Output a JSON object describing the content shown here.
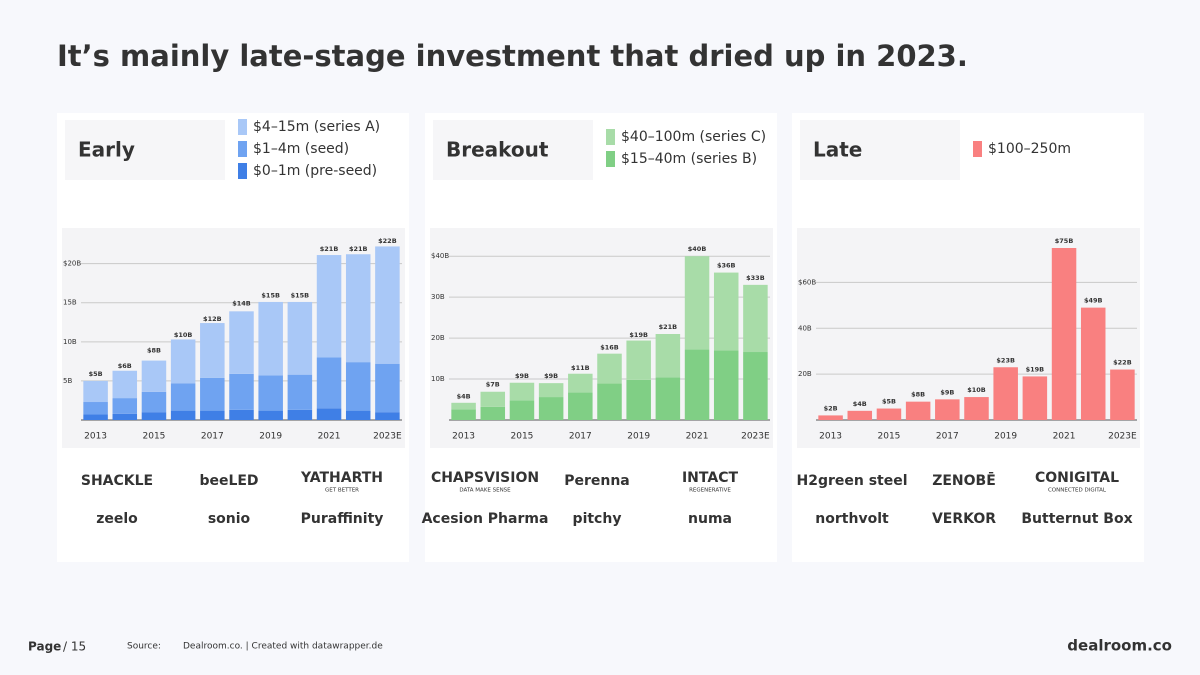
{
  "title": "It’s mainly late-stage investment that dried up in 2023.",
  "chart_data": [
    {
      "type": "bar",
      "stacked": true,
      "title": "Early",
      "categories": [
        "2013",
        null,
        "2015",
        null,
        "2017",
        null,
        "2019",
        null,
        "2021",
        null,
        "2023E"
      ],
      "series": [
        {
          "name": "$0–1m (pre-seed)",
          "color": "#3f7fe6",
          "values": [
            0.7,
            0.8,
            1.0,
            1.2,
            1.2,
            1.3,
            1.2,
            1.3,
            1.5,
            1.2,
            1.0
          ]
        },
        {
          "name": "$1–4m (seed)",
          "color": "#6fa3f1",
          "values": [
            1.6,
            2.0,
            2.6,
            3.5,
            4.2,
            4.6,
            4.5,
            4.5,
            6.5,
            6.2,
            6.2
          ]
        },
        {
          "name": "$4–15m (series A)",
          "color": "#a9c8f7",
          "values": [
            2.7,
            3.5,
            4.0,
            5.6,
            7.0,
            8.0,
            9.4,
            9.3,
            13.1,
            13.8,
            15.0
          ]
        }
      ],
      "totals": {
        "values": [
          5,
          6,
          8,
          10,
          12,
          14,
          15,
          15,
          21,
          21,
          22
        ],
        "value_labels": [
          "$5B",
          "$6B",
          "$8B",
          "$10B",
          "$12B",
          "$14B",
          "$15B",
          "$15B",
          "$21B",
          "$21B",
          "$22B"
        ]
      },
      "ylim": [
        0,
        22
      ],
      "yticks": [
        {
          "value": 5,
          "label": "5B"
        },
        {
          "value": 10,
          "label": "10B"
        },
        {
          "value": 15,
          "label": "15B"
        },
        {
          "value": 20,
          "label": "$20B"
        }
      ],
      "grid": true
    },
    {
      "type": "bar",
      "stacked": true,
      "title": "Breakout",
      "categories": [
        "2013",
        null,
        "2015",
        null,
        "2017",
        null,
        "2019",
        null,
        "2021",
        null,
        "2023E"
      ],
      "series": [
        {
          "name": "$15–40m (series B)",
          "color": "#80cf85",
          "values": [
            2.6,
            3.2,
            4.8,
            5.6,
            6.7,
            8.9,
            9.8,
            10.4,
            17.2,
            17.0,
            16.6
          ]
        },
        {
          "name": "$40–100m (series C)",
          "color": "#a8dca8",
          "values": [
            1.6,
            3.7,
            4.3,
            3.4,
            4.6,
            7.3,
            9.6,
            10.6,
            22.8,
            19.0,
            16.4
          ]
        }
      ],
      "totals": {
        "values": [
          4,
          7,
          9,
          9,
          11,
          16,
          19,
          21,
          40,
          36,
          33
        ],
        "value_labels": [
          "$4B",
          "$7B",
          "$9B",
          "$9B",
          "$11B",
          "$16B",
          "$19B",
          "$21B",
          "$40B",
          "$36B",
          "$33B"
        ]
      },
      "ylim": [
        0,
        42
      ],
      "yticks": [
        {
          "value": 10,
          "label": "10B"
        },
        {
          "value": 20,
          "label": "20B"
        },
        {
          "value": 30,
          "label": "30B"
        },
        {
          "value": 40,
          "label": "$40B"
        }
      ],
      "grid": true
    },
    {
      "type": "bar",
      "stacked": true,
      "title": "Late",
      "categories": [
        "2013",
        null,
        "2015",
        null,
        "2017",
        null,
        "2019",
        null,
        "2021",
        null,
        "2023E"
      ],
      "series": [
        {
          "name": "$100–250m",
          "color": "#f98080",
          "values": [
            2,
            4,
            5,
            8,
            9,
            10,
            23,
            19,
            75,
            49,
            22
          ],
          "value_labels": [
            "$2B",
            "$4B",
            "$5B",
            "$8B",
            "$9B",
            "$10B",
            "$23B",
            "$19B",
            "$75B",
            "$49B",
            "$22B"
          ]
        }
      ],
      "ylim": [
        0,
        75
      ],
      "yticks": [
        {
          "value": 20,
          "label": "20B"
        },
        {
          "value": 40,
          "label": "40B"
        },
        {
          "value": 60,
          "label": "$60B"
        }
      ],
      "grid": true
    }
  ],
  "logos": [
    [
      {
        "name": "SHACKLE"
      },
      {
        "name": "beeLED"
      },
      {
        "name": "YATHARTH",
        "tagline": "GET BETTER"
      },
      {
        "name": "zeelo"
      },
      {
        "name": "sonio"
      },
      {
        "name": "Puraffinity"
      }
    ],
    [
      {
        "name": "CHAPSVISION",
        "tagline": "DATA MAKE SENSE"
      },
      {
        "name": "Perenna"
      },
      {
        "name": "INTACT",
        "tagline": "REGENERATIVE"
      },
      {
        "name": "Acesion Pharma"
      },
      {
        "name": "pitchy"
      },
      {
        "name": "numa"
      }
    ],
    [
      {
        "name": "H2green steel"
      },
      {
        "name": "ZENOBĒ"
      },
      {
        "name": "CONIGITAL",
        "tagline": "CONNECTED DIGITAL"
      },
      {
        "name": "northvolt"
      },
      {
        "name": "VERKOR"
      },
      {
        "name": "Butternut Box"
      }
    ]
  ],
  "footer": {
    "page": "Page",
    "page_count": "/ 15",
    "source_label": "Source:",
    "source": "Dealroom.co. | Created with datawrapper.de",
    "brand": "dealroom.co"
  }
}
